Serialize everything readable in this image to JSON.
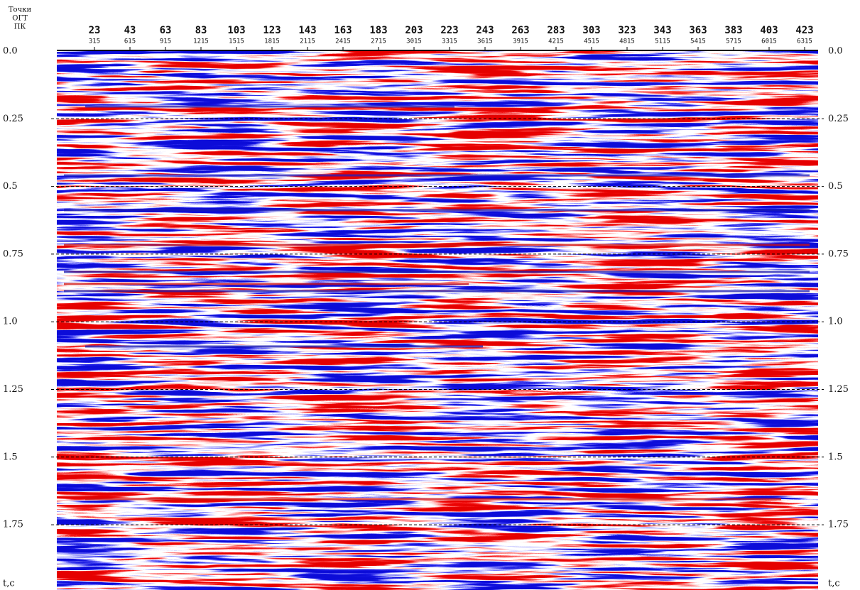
{
  "header": {
    "lines": [
      "Точки",
      "ОГТ",
      "ПК"
    ]
  },
  "cdp_labels": [
    23,
    43,
    63,
    83,
    103,
    123,
    143,
    163,
    183,
    203,
    223,
    243,
    263,
    283,
    303,
    323,
    343,
    363,
    383,
    403,
    423
  ],
  "pk_labels": [
    315,
    615,
    915,
    1215,
    1515,
    1815,
    2115,
    2415,
    2715,
    3015,
    3315,
    3615,
    3915,
    4215,
    4515,
    4815,
    5115,
    5415,
    5715,
    6015,
    6315
  ],
  "time_ticks": [
    "0.0",
    "0.25",
    "0.5",
    "0.75",
    "1.0",
    "1.25",
    "1.5",
    "1.75"
  ],
  "time_axis_label": "t,c"
}
